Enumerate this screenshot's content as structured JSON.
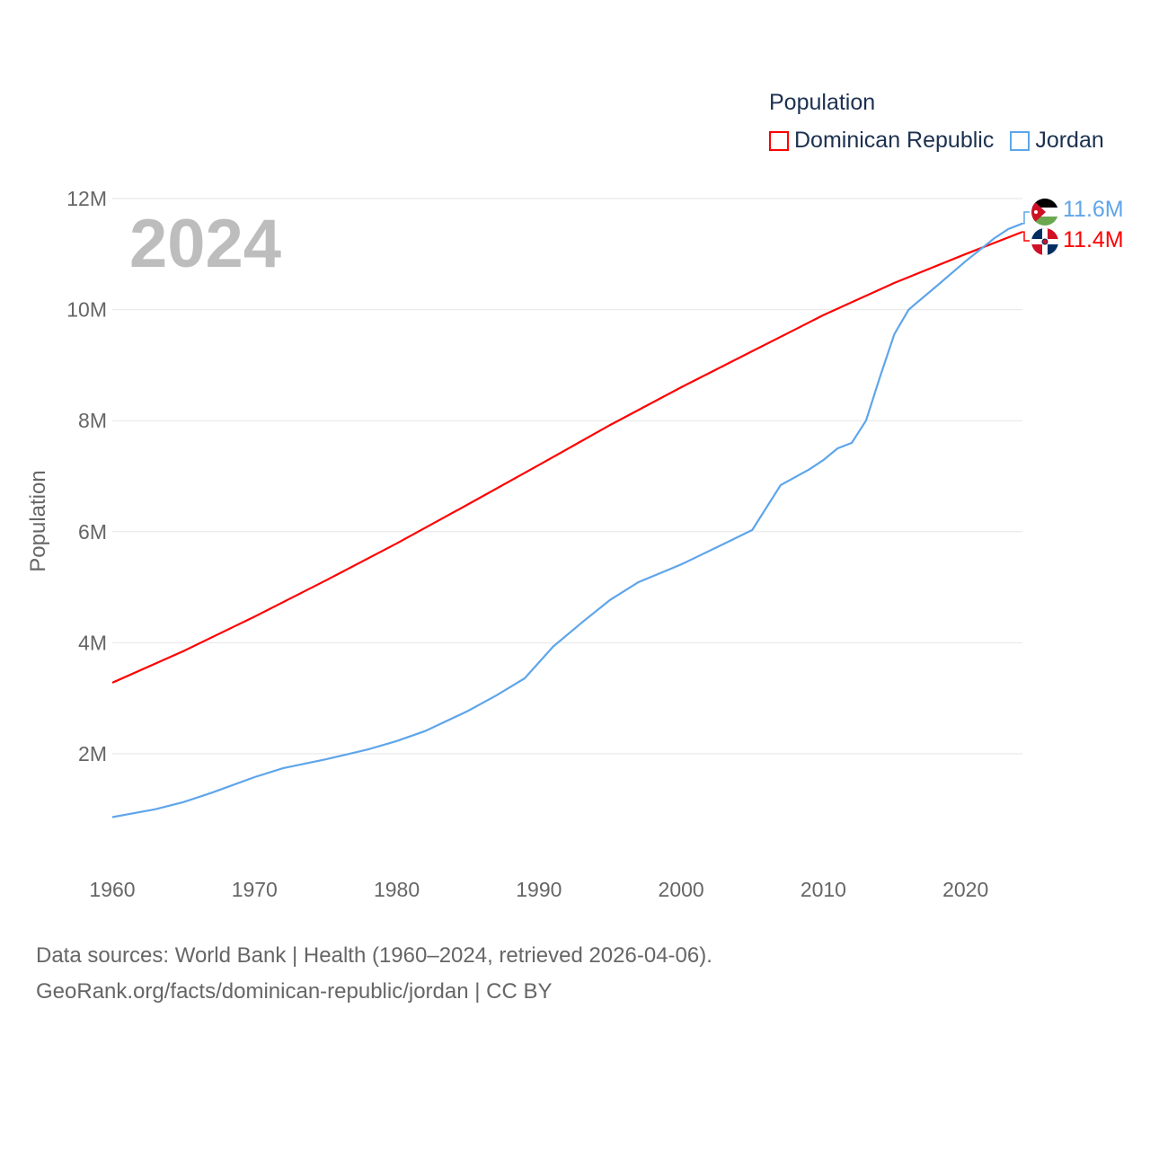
{
  "chart_data": {
    "type": "line",
    "title": "Population",
    "ylabel": "Population",
    "xlabel": "",
    "xlim": [
      1960,
      2024
    ],
    "ylim": [
      0,
      12000000
    ],
    "x_ticks": [
      1960,
      1970,
      1980,
      1990,
      2000,
      2010,
      2020
    ],
    "x_tick_labels": [
      "1960",
      "1970",
      "1980",
      "1990",
      "2000",
      "2010",
      "2020"
    ],
    "y_ticks": [
      2000000,
      4000000,
      6000000,
      8000000,
      10000000,
      12000000
    ],
    "y_tick_labels": [
      "2M",
      "4M",
      "6M",
      "8M",
      "10M",
      "12M"
    ],
    "grid": true,
    "legend_position": "top-right",
    "current_year_label": "2024",
    "series": [
      {
        "name": "Dominican Republic",
        "color": "#ff0000",
        "end_label": "11.4M",
        "flag": "dominican-republic-flag",
        "x": [
          1960,
          1965,
          1970,
          1975,
          1980,
          1985,
          1990,
          1995,
          2000,
          2005,
          2010,
          2015,
          2020,
          2024
        ],
        "values": [
          3.28,
          3.85,
          4.47,
          5.12,
          5.79,
          6.49,
          7.2,
          7.92,
          8.6,
          9.25,
          9.9,
          10.48,
          11.0,
          11.4
        ]
      },
      {
        "name": "Jordan",
        "color": "#5ea5ea",
        "end_label": "11.6M",
        "flag": "jordan-flag",
        "x": [
          1960,
          1963,
          1965,
          1967,
          1970,
          1972,
          1975,
          1978,
          1980,
          1982,
          1985,
          1987,
          1989,
          1991,
          1993,
          1995,
          1997,
          2000,
          2003,
          2005,
          2007,
          2009,
          2010,
          2011,
          2012,
          2013,
          2014,
          2015,
          2016,
          2018,
          2020,
          2022,
          2023,
          2024
        ],
        "values": [
          0.86,
          1.0,
          1.13,
          1.3,
          1.58,
          1.74,
          1.9,
          2.08,
          2.23,
          2.41,
          2.77,
          3.05,
          3.36,
          3.93,
          4.36,
          4.77,
          5.09,
          5.41,
          5.78,
          6.03,
          6.84,
          7.12,
          7.29,
          7.5,
          7.6,
          8.0,
          8.8,
          9.56,
          10.0,
          10.43,
          10.87,
          11.28,
          11.45,
          11.55
        ]
      }
    ]
  },
  "legend_title": "Population",
  "source_line1": "Data sources: World Bank | Health (1960–2024, retrieved 2026-04-06).",
  "source_line2": "GeoRank.org/facts/dominican-republic/jordan | CC BY"
}
